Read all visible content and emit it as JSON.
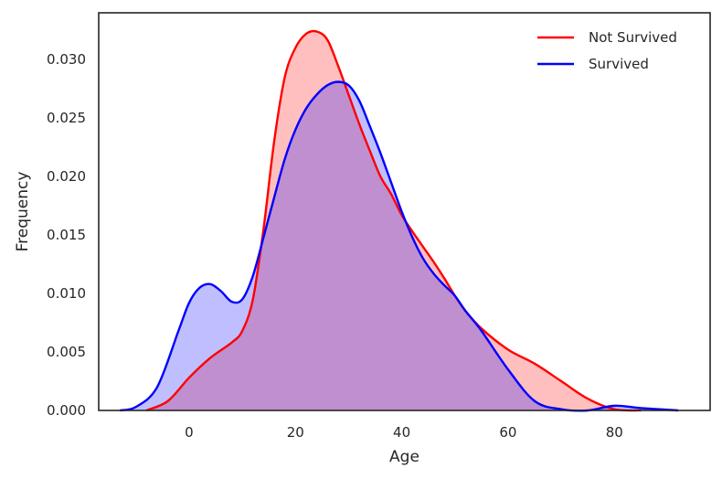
{
  "chart_data": {
    "type": "area",
    "title": "",
    "xlabel": "Age",
    "ylabel": "Frequency",
    "xlim": [
      -17,
      98
    ],
    "ylim": [
      0,
      0.034
    ],
    "xticks": [
      0,
      20,
      40,
      60,
      80
    ],
    "yticks": [
      0.0,
      0.005,
      0.01,
      0.015,
      0.02,
      0.025,
      0.03
    ],
    "ytick_labels": [
      "0.000",
      "0.005",
      "0.010",
      "0.015",
      "0.020",
      "0.025",
      "0.030"
    ],
    "grid": false,
    "legend_position": "top-right",
    "series": [
      {
        "name": "Not Survived",
        "color": "#ff0000",
        "fill": "#ff0000",
        "fill_opacity": 0.25,
        "x": [
          -8,
          -4,
          0,
          4,
          8,
          10,
          12,
          14,
          16,
          18,
          20,
          22,
          24,
          26,
          28,
          30,
          32,
          34,
          36,
          38,
          40,
          42,
          44,
          46,
          48,
          50,
          52,
          55,
          60,
          65,
          70,
          75,
          80,
          85
        ],
        "y": [
          0.0,
          0.0008,
          0.0028,
          0.0045,
          0.0058,
          0.0068,
          0.0095,
          0.0155,
          0.023,
          0.0285,
          0.031,
          0.0322,
          0.0324,
          0.0317,
          0.0295,
          0.027,
          0.0245,
          0.0222,
          0.02,
          0.0185,
          0.0167,
          0.0153,
          0.014,
          0.0127,
          0.0113,
          0.0098,
          0.0085,
          0.007,
          0.0052,
          0.004,
          0.0025,
          0.001,
          0.0001,
          0.0
        ]
      },
      {
        "name": "Survived",
        "color": "#0000ff",
        "fill": "#0000ff",
        "fill_opacity": 0.25,
        "x": [
          -13,
          -10,
          -6,
          -2,
          0,
          2,
          4,
          6,
          8,
          10,
          12,
          14,
          16,
          18,
          20,
          22,
          24,
          26,
          28,
          30,
          32,
          34,
          36,
          38,
          40,
          42,
          44,
          46,
          48,
          50,
          52,
          55,
          60,
          65,
          70,
          75,
          80,
          85,
          92
        ],
        "y": [
          0.0,
          0.0003,
          0.002,
          0.0068,
          0.0092,
          0.0105,
          0.0108,
          0.0102,
          0.0093,
          0.0095,
          0.0115,
          0.0148,
          0.0182,
          0.0215,
          0.024,
          0.0258,
          0.027,
          0.0278,
          0.0281,
          0.0278,
          0.0265,
          0.0243,
          0.022,
          0.0195,
          0.017,
          0.0148,
          0.013,
          0.0117,
          0.0107,
          0.0098,
          0.0085,
          0.0068,
          0.0035,
          0.0008,
          0.0001,
          0.0,
          0.0004,
          0.0002,
          0.0
        ]
      }
    ]
  }
}
